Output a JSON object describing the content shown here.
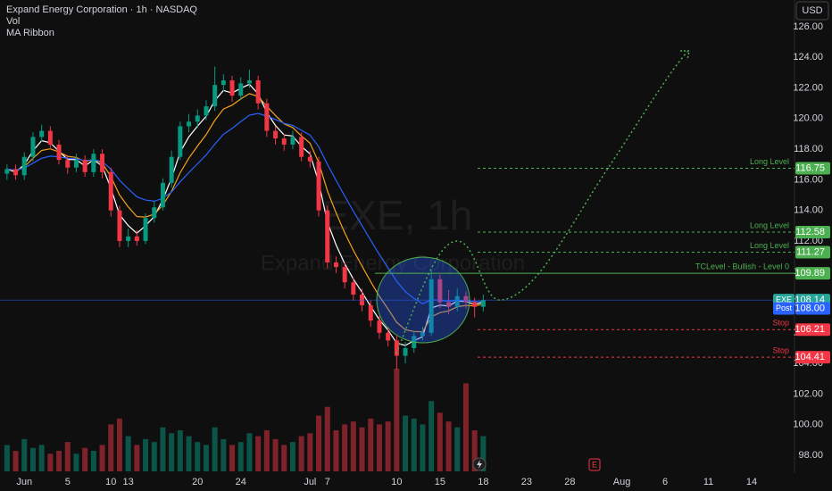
{
  "chart_data": {
    "type": "candlestick",
    "title": "Expand Energy Corporation · 1h · NASDAQ",
    "indicators": [
      "Vol",
      "MA Ribbon"
    ],
    "currency": "USD",
    "watermark": "EXE, 1h",
    "watermark_name": "Expand Energy Corporation",
    "categories": [
      null,
      null,
      "Jun",
      null,
      null,
      null,
      null,
      "5",
      null,
      null,
      null,
      null,
      "10",
      null,
      "13",
      null,
      null,
      null,
      null,
      null,
      null,
      null,
      "20",
      null,
      null,
      null,
      null,
      "24",
      null,
      null,
      null,
      null,
      null,
      null,
      null,
      "Jul",
      null,
      "7",
      null,
      null,
      null,
      null,
      null,
      null,
      null,
      "10",
      null,
      null,
      null,
      null,
      "15",
      null,
      null,
      null,
      null,
      "18",
      null,
      null,
      null,
      null,
      "23",
      null,
      null,
      null,
      null,
      "28",
      null,
      null,
      null,
      null,
      null,
      "Aug",
      null,
      null,
      null,
      null,
      "6",
      null,
      null,
      null,
      null,
      "11",
      null,
      null,
      null,
      null,
      "14",
      null,
      null,
      null,
      null
    ],
    "open": [
      116.4,
      116.7,
      116.3,
      117.5,
      118.8,
      119.2,
      118.3,
      117.3,
      116.8,
      117.3,
      116.5,
      117.7,
      116.5,
      114,
      112,
      112.3,
      112,
      113.5,
      114.2,
      115.8,
      117.5,
      119.5,
      119.8,
      120.2,
      120.8,
      122.2,
      122.5,
      121.5,
      122.3,
      122.5,
      121,
      119.2,
      118.7,
      118.3,
      118.8,
      117.5,
      117.2,
      114,
      110.6,
      110.3,
      109.3,
      108.5,
      107.8,
      106.8,
      106,
      105.5,
      104.5,
      105,
      105.8,
      106,
      109.5,
      108,
      107.7,
      108.4,
      108,
      107.7,
      null,
      null,
      null,
      null,
      null,
      null,
      null,
      null,
      null,
      null,
      null,
      null,
      null,
      null,
      null,
      null,
      null,
      null,
      null,
      null,
      null,
      null,
      null,
      null,
      null,
      null,
      null,
      null,
      null,
      null,
      null,
      null,
      null,
      null,
      null
    ],
    "high": [
      117.0,
      117.0,
      117.8,
      119.1,
      119.6,
      119.5,
      118.6,
      117.6,
      117.7,
      117.6,
      118.0,
      118.0,
      116.8,
      114.3,
      112.8,
      112.7,
      113.8,
      114.6,
      116.1,
      117.9,
      119.8,
      120.3,
      120.6,
      121.2,
      123.4,
      122.9,
      122.8,
      122.7,
      123.2,
      122.8,
      121.3,
      119.5,
      119.0,
      119.2,
      119.1,
      117.9,
      117.5,
      114.3,
      111.0,
      110.6,
      109.6,
      108.9,
      108.1,
      107.1,
      106.4,
      105.8,
      105.4,
      106.1,
      106.4,
      110.1,
      109.8,
      108.8,
      108.9,
      108.7,
      108.3,
      108.5,
      null,
      null,
      null,
      null,
      null,
      null,
      null,
      null,
      null,
      null,
      null,
      null,
      null,
      null,
      null,
      null,
      null,
      null,
      null,
      null,
      null,
      null,
      null,
      null,
      null,
      null,
      null,
      null,
      null,
      null,
      null,
      null,
      null,
      null,
      null
    ],
    "low": [
      116.0,
      116.0,
      116.0,
      117.2,
      118.5,
      118.0,
      117.0,
      116.4,
      116.5,
      116.2,
      116.2,
      116.1,
      113.6,
      111.6,
      111.6,
      111.7,
      111.8,
      113.2,
      114.0,
      115.5,
      117.3,
      119.1,
      119.4,
      119.9,
      120.5,
      121.8,
      121.1,
      121.2,
      122.0,
      120.6,
      118.8,
      118.3,
      117.9,
      118.0,
      117.2,
      116.8,
      113.6,
      110.2,
      109.9,
      108.9,
      108.1,
      107.4,
      106.4,
      105.6,
      105.1,
      103.6,
      104.0,
      104.7,
      105.5,
      105.8,
      107.6,
      107.2,
      107.4,
      107.6,
      107.0,
      107.4,
      null,
      null,
      null,
      null,
      null,
      null,
      null,
      null,
      null,
      null,
      null,
      null,
      null,
      null,
      null,
      null,
      null,
      null,
      null,
      null,
      null,
      null,
      null,
      null,
      null,
      null,
      null,
      null,
      null,
      null,
      null,
      null,
      null,
      null,
      null
    ],
    "close": [
      116.7,
      116.3,
      117.5,
      118.8,
      119.2,
      118.3,
      117.3,
      116.8,
      117.3,
      116.5,
      117.7,
      116.5,
      114,
      112,
      112.3,
      112,
      113.5,
      114.2,
      115.8,
      117.5,
      119.5,
      119.8,
      120.2,
      120.8,
      122.2,
      122.5,
      121.5,
      122.3,
      122.5,
      121,
      119.2,
      118.7,
      118.3,
      118.8,
      117.5,
      117.2,
      114,
      110.6,
      110.3,
      109.3,
      108.5,
      107.8,
      106.8,
      106,
      105.5,
      104.5,
      105,
      105.8,
      106,
      109.5,
      108,
      107.7,
      108.4,
      108,
      107.7,
      108.14,
      null,
      null,
      null,
      null,
      null,
      null,
      null,
      null,
      null,
      null,
      null,
      null,
      null,
      null,
      null,
      null,
      null,
      null,
      null,
      null,
      null,
      null,
      null,
      null,
      null,
      null,
      null,
      null,
      null,
      null,
      null,
      null,
      null,
      null,
      null
    ],
    "volume": [
      0.9,
      0.7,
      1.1,
      0.8,
      0.9,
      0.6,
      0.7,
      1.0,
      0.6,
      0.8,
      0.7,
      0.9,
      1.6,
      1.8,
      1.2,
      0.9,
      1.1,
      1.0,
      1.5,
      1.3,
      1.4,
      1.2,
      1.0,
      0.9,
      1.5,
      1.1,
      0.9,
      1.0,
      1.3,
      1.2,
      1.4,
      1.1,
      0.9,
      1.0,
      1.2,
      1.3,
      1.9,
      2.2,
      1.4,
      1.6,
      1.7,
      1.5,
      1.8,
      1.6,
      1.7,
      3.5,
      1.9,
      1.8,
      1.6,
      2.4,
      2.0,
      1.7,
      1.5,
      3.0,
      1.4,
      1.2,
      null,
      null,
      null,
      null,
      null,
      null,
      null,
      null,
      null,
      null,
      null,
      null,
      null,
      null,
      null,
      null,
      null,
      null,
      null,
      null,
      null,
      null,
      null,
      null,
      null,
      null,
      null,
      null,
      null,
      null,
      null,
      null,
      null,
      null,
      null
    ],
    "up_color": "#089981",
    "down_color": "#f23645",
    "ma_colors": [
      "#ffffff",
      "#f7a21b",
      "#2962ff"
    ],
    "ylim": [
      96.83,
      127.75
    ],
    "yticks": [
      {
        "value": 98,
        "label": "98.00"
      },
      {
        "value": 100,
        "label": "100.00"
      },
      {
        "value": 102,
        "label": "102.00"
      },
      {
        "value": 104,
        "label": "104.00"
      },
      {
        "value": 106,
        "label": "106.00"
      },
      {
        "value": 108,
        "label": "108.00"
      },
      {
        "value": 110,
        "label": "110.00"
      },
      {
        "value": 112,
        "label": "112.00"
      },
      {
        "value": 114,
        "label": "114.00"
      },
      {
        "value": 116,
        "label": "116.00"
      },
      {
        "value": 118,
        "label": "118.00"
      },
      {
        "value": 120,
        "label": "120.00"
      },
      {
        "value": 122,
        "label": "122.00"
      },
      {
        "value": 124,
        "label": "124.00"
      },
      {
        "value": 126,
        "label": "126.00"
      }
    ],
    "levels": [
      {
        "label": "Long Level",
        "value": 116.75,
        "color": "#4caf50",
        "style": "dashed"
      },
      {
        "label": "Long Level",
        "value": 112.58,
        "color": "#4caf50",
        "style": "dashed"
      },
      {
        "label": "Long Level",
        "value": 111.27,
        "color": "#4caf50",
        "style": "dashed"
      },
      {
        "label": "TCLevel - Bullish - Level 0",
        "value": 109.89,
        "color": "#4caf50",
        "style": "solid"
      },
      {
        "label": "Stop",
        "value": 106.21,
        "color": "#f23645",
        "style": "dashed"
      },
      {
        "label": "Stop",
        "value": 104.41,
        "color": "#f23645",
        "style": "dashed"
      }
    ],
    "last_price": {
      "label": "EXE",
      "value": 108.14,
      "color": "#26a69a"
    },
    "post_price": {
      "label": "Post",
      "value": {
        "value": 108,
        "label": "108.00"
      },
      "color": "#2962ff"
    },
    "earnings_marker": "E"
  }
}
